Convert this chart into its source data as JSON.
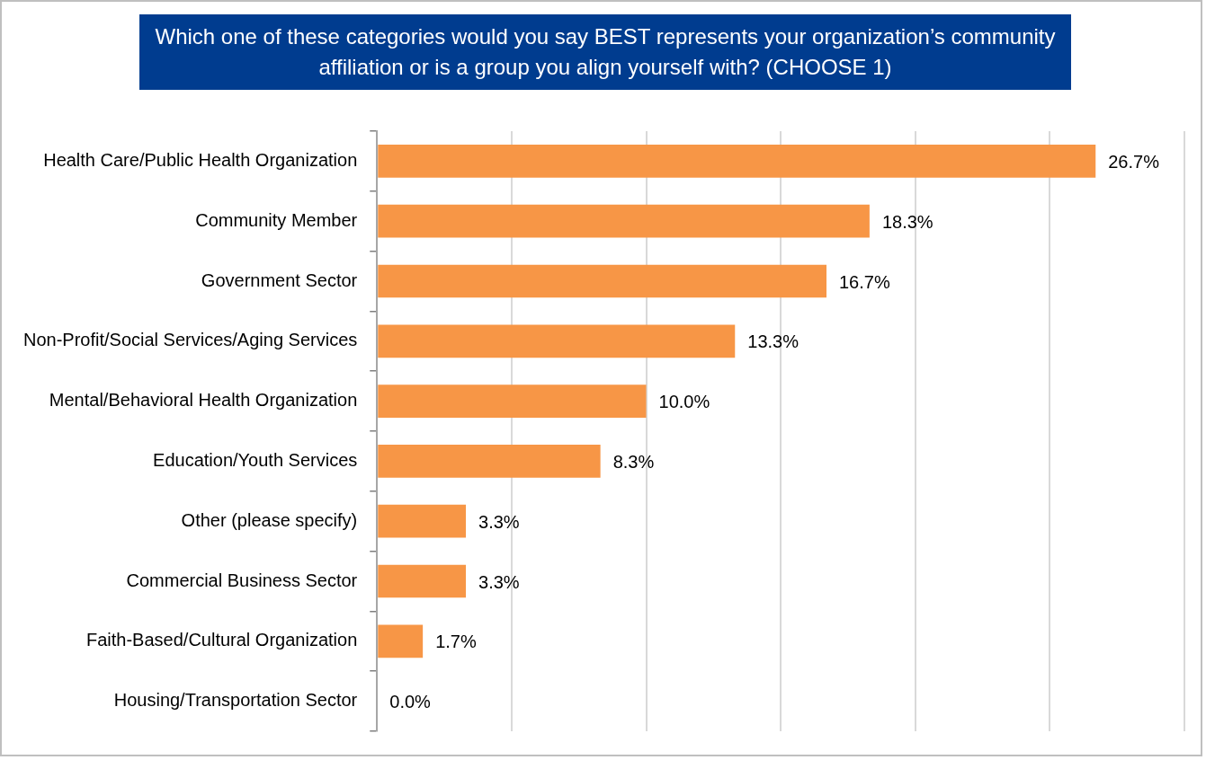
{
  "chart_data": {
    "type": "bar",
    "orientation": "horizontal",
    "title": "Which one of these categories would you say BEST represents your organization’s community affiliation or is a group you align yourself with? (CHOOSE 1)",
    "categories": [
      "Health Care/Public Health Organization",
      "Community Member",
      "Government Sector",
      "Non-Profit/Social Services/Aging Services",
      "Mental/Behavioral Health Organization",
      "Education/Youth Services",
      "Other (please specify)",
      "Commercial Business Sector",
      "Faith-Based/Cultural Organization",
      "Housing/Transportation Sector"
    ],
    "values": [
      26.7,
      18.3,
      16.7,
      13.3,
      10.0,
      8.3,
      3.3,
      3.3,
      1.7,
      0.0
    ],
    "value_labels": [
      "26.7%",
      "18.3%",
      "16.7%",
      "13.3%",
      "10.0%",
      "8.3%",
      "3.3%",
      "3.3%",
      "1.7%",
      "0.0%"
    ],
    "color": "#f79646",
    "xlim": [
      0,
      30
    ],
    "xticks": [
      {
        "value": 0,
        "label": null
      },
      {
        "value": 5,
        "label": null
      },
      {
        "value": 10,
        "label": null
      },
      {
        "value": 15,
        "label": null
      },
      {
        "value": 20,
        "label": null
      },
      {
        "value": 25,
        "label": null
      },
      {
        "value": 30,
        "label": null
      }
    ],
    "grid": "x",
    "tick_labels": "y"
  }
}
